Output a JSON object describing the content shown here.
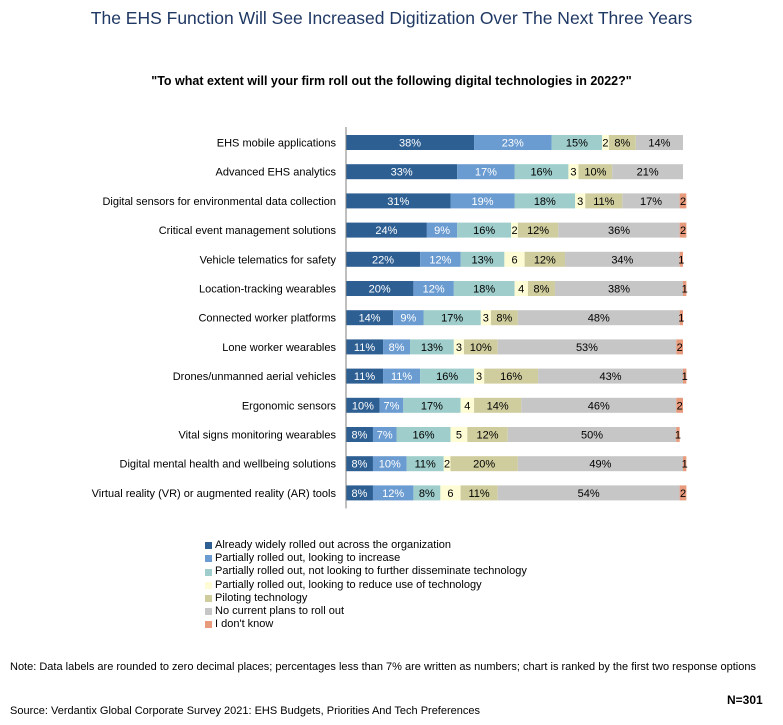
{
  "title": "The EHS Function Will See Increased Digitization Over The Next Three Years",
  "subtitle": "\"To what extent will your firm roll out the following digital technologies in 2022?\"",
  "note": "Note: Data labels are rounded to zero decimal places; percentages less than 7% are written as numbers; chart is ranked by the first two response options",
  "n_label": "N=301",
  "source": "Source: Verdantix Global Corporate Survey 2021: EHS Budgets, Priorities And Tech Preferences",
  "chart_data": {
    "type": "bar",
    "orientation": "horizontal",
    "stacked": true,
    "xlim": [
      0,
      100
    ],
    "label_threshold": 7,
    "categories": [
      "EHS mobile applications",
      "Advanced EHS analytics",
      "Digital sensors for environmental data collection",
      "Critical event management solutions",
      "Vehicle telematics for safety",
      "Location-tracking wearables",
      "Connected worker platforms",
      "Lone worker wearables",
      "Drones/unmanned aerial vehicles",
      "Ergonomic sensors",
      "Vital signs monitoring wearables",
      "Digital mental health and wellbeing solutions",
      "Virtual reality (VR) or augmented reality (AR) tools"
    ],
    "series": [
      {
        "name": "Already widely rolled out across the organization",
        "color": "#2e5f92",
        "values": [
          38,
          33,
          31,
          24,
          22,
          20,
          14,
          11,
          11,
          10,
          8,
          8,
          8
        ]
      },
      {
        "name": "Partially rolled out, looking to increase",
        "color": "#6a9bd1",
        "values": [
          23,
          17,
          19,
          9,
          12,
          12,
          9,
          8,
          11,
          7,
          7,
          10,
          12
        ]
      },
      {
        "name": "Partially rolled out, not looking to further disseminate technology",
        "color": "#9ecdcb",
        "values": [
          15,
          16,
          18,
          16,
          13,
          18,
          17,
          13,
          16,
          17,
          16,
          11,
          8
        ]
      },
      {
        "name": "Partially rolled out, looking to reduce use of technology",
        "color": "#fdfcd5",
        "values": [
          2,
          3,
          3,
          2,
          6,
          4,
          3,
          3,
          3,
          4,
          5,
          2,
          6
        ]
      },
      {
        "name": "Piloting technology",
        "color": "#cfcd9e",
        "values": [
          8,
          10,
          11,
          12,
          12,
          8,
          8,
          10,
          16,
          14,
          12,
          20,
          11
        ]
      },
      {
        "name": "No current plans to roll out",
        "color": "#c6c6c6",
        "values": [
          14,
          21,
          17,
          36,
          34,
          38,
          48,
          53,
          43,
          46,
          50,
          49,
          54
        ]
      },
      {
        "name": "I don't know",
        "color": "#e79a7c",
        "values": [
          0,
          0,
          2,
          2,
          1,
          1,
          1,
          2,
          1,
          2,
          1,
          1,
          2
        ]
      }
    ]
  }
}
